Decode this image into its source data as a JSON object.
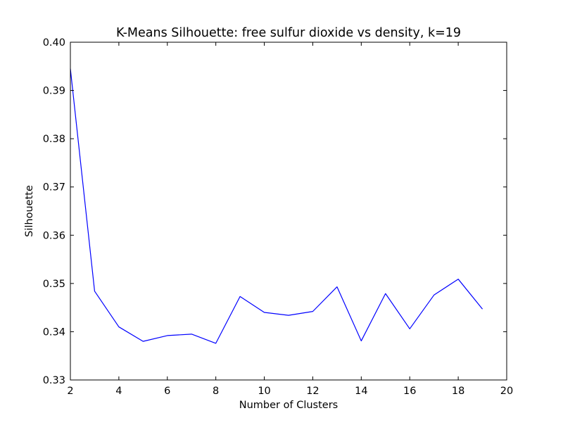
{
  "chart_data": {
    "type": "line",
    "title": "K-Means Silhouette: free sulfur dioxide vs density, k=19",
    "xlabel": "Number of Clusters",
    "ylabel": "Silhouette",
    "xlim": [
      2,
      20
    ],
    "ylim": [
      0.33,
      0.4
    ],
    "xticks": [
      2,
      4,
      6,
      8,
      10,
      12,
      14,
      16,
      18,
      20
    ],
    "yticks": [
      0.33,
      0.34,
      0.35,
      0.36,
      0.37,
      0.38,
      0.39,
      0.4
    ],
    "xtick_labels": [
      "2",
      "4",
      "6",
      "8",
      "10",
      "12",
      "14",
      "16",
      "18",
      "20"
    ],
    "ytick_labels": [
      "0.33",
      "0.34",
      "0.35",
      "0.36",
      "0.37",
      "0.38",
      "0.39",
      "0.40"
    ],
    "grid": false,
    "legend": "none",
    "series": [
      {
        "color": "#0000ff",
        "x": [
          2,
          3,
          4,
          5,
          6,
          7,
          8,
          9,
          10,
          11,
          12,
          13,
          14,
          15,
          16,
          17,
          18,
          19
        ],
        "y": [
          0.3945,
          0.3484,
          0.341,
          0.338,
          0.3392,
          0.3395,
          0.3376,
          0.3473,
          0.344,
          0.3434,
          0.3442,
          0.3493,
          0.3381,
          0.3479,
          0.3406,
          0.3476,
          0.3509,
          0.3447
        ]
      }
    ]
  }
}
